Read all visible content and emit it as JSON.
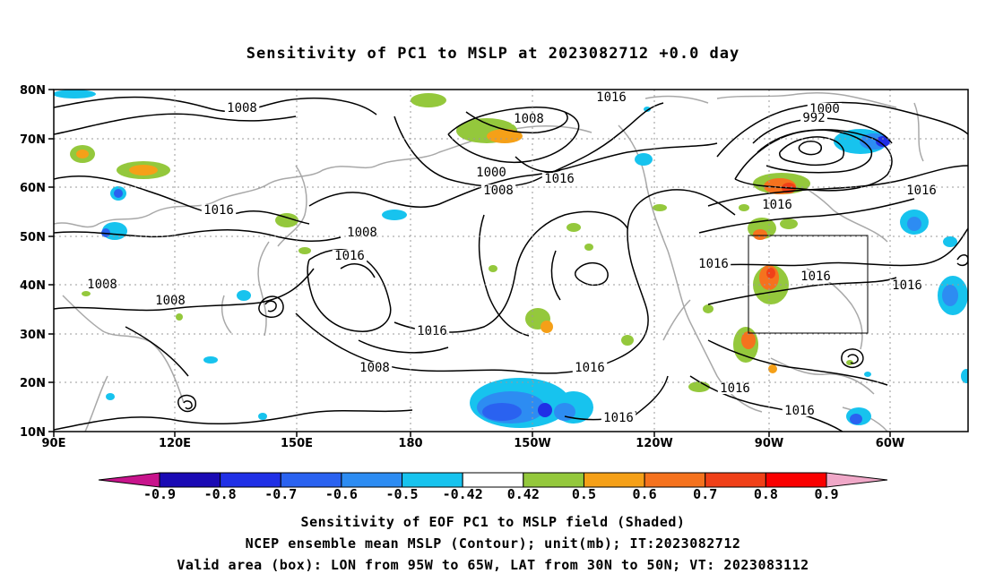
{
  "title": "Sensitivity of PC1 to MSLP at 2023082712 +0.0 day",
  "map": {
    "lat_labels": [
      "80N",
      "70N",
      "60N",
      "50N",
      "40N",
      "30N",
      "20N",
      "10N"
    ],
    "lon_labels": [
      "90E",
      "120E",
      "150E",
      "180",
      "150W",
      "120W",
      "90W",
      "60W"
    ],
    "isobar_labels": [
      "1016",
      "1008",
      "1000",
      "992",
      "1008",
      "1000",
      "1008",
      "1016",
      "1016",
      "1016",
      "1008",
      "1016",
      "1016",
      "1016",
      "1016",
      "1016",
      "1016",
      "1008",
      "1016",
      "1008",
      "1008",
      "1016",
      "1016",
      "1016",
      "1008",
      "1016"
    ],
    "valid_box": {
      "lon_from": "95W",
      "lon_to": "65W",
      "lat_from": "30N",
      "lat_to": "50N"
    }
  },
  "colorbar": {
    "labels": [
      "-0.9",
      "-0.8",
      "-0.7",
      "-0.6",
      "-0.5",
      "-0.42",
      "0.42",
      "0.5",
      "0.6",
      "0.7",
      "0.8",
      "0.9"
    ],
    "colors": [
      "#1a0ab4",
      "#2030e6",
      "#2a62f0",
      "#2d8cf2",
      "#17c3ee",
      "#ffffff",
      "#94c83c",
      "#f5a018",
      "#f5721e",
      "#f04018",
      "#fa0000"
    ],
    "low_extend_color": "#c8148c",
    "high_extend_color": "#f0a8c8"
  },
  "captions": {
    "line1": "Sensitivity of EOF PC1 to MSLP field (Shaded)",
    "line2": "NCEP ensemble mean MSLP (Contour); unit(mb); IT:2023082712",
    "line3": "Valid area (box): LON from 95W to 65W, LAT from 30N to 50N; VT: 2023083112"
  }
}
